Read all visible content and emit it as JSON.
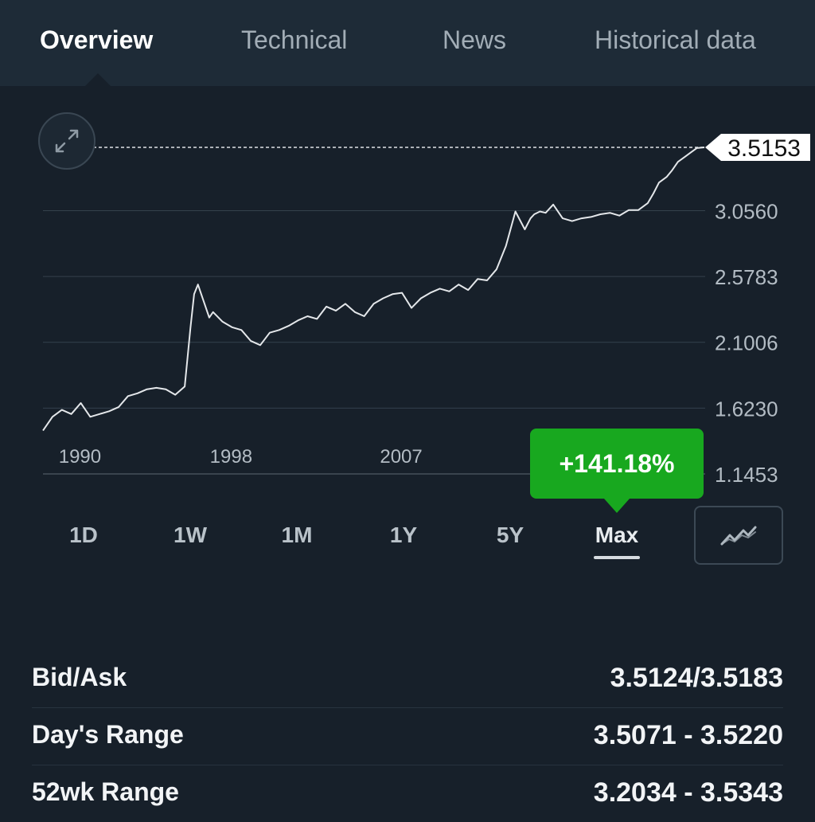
{
  "tabs": [
    {
      "label": "Overview",
      "active": true
    },
    {
      "label": "Technical",
      "active": false
    },
    {
      "label": "News",
      "active": false
    },
    {
      "label": "Historical data",
      "active": false
    }
  ],
  "chart": {
    "expand_icon": "expand-arrows-icon",
    "current_price_label": "3.5153",
    "change_label": "+141.18%",
    "change_color": "#18a81f",
    "line_color": "#e4e7ea"
  },
  "chart_data": {
    "type": "line",
    "title": "",
    "xlabel": "",
    "ylabel": "",
    "x_tick_labels": [
      "1990",
      "1998",
      "2007"
    ],
    "y_tick_labels": [
      "3.0560",
      "2.5783",
      "2.1006",
      "1.6230",
      "1.1453"
    ],
    "ylim": [
      1.1453,
      3.5153
    ],
    "current_value": 3.5153,
    "grid": true,
    "series": [
      {
        "x": [
          1989.0,
          1989.5,
          1990.0,
          1990.5,
          1991.0,
          1991.5,
          1992.0,
          1992.5,
          1993.0,
          1993.5,
          1994.0,
          1994.5,
          1995.0,
          1995.5,
          1996.0,
          1996.5,
          1996.8,
          1997.0,
          1997.2,
          1997.5,
          1997.8,
          1998.0,
          1998.5,
          1999.0,
          1999.5,
          2000.0,
          2000.5,
          2001.0,
          2001.5,
          2002.0,
          2002.5,
          2003.0,
          2003.5,
          2004.0,
          2004.5,
          2005.0,
          2005.5,
          2006.0,
          2006.5,
          2007.0,
          2007.5,
          2008.0,
          2008.5,
          2009.0,
          2009.5,
          2010.0,
          2010.5,
          2011.0,
          2011.5,
          2012.0,
          2012.5,
          2013.0,
          2013.5,
          2014.0,
          2014.5,
          2014.8,
          2015.0,
          2015.3,
          2015.6,
          2016.0,
          2016.5,
          2017.0,
          2017.5,
          2018.0,
          2018.5,
          2019.0,
          2019.5,
          2020.0,
          2020.5,
          2021.0,
          2021.3,
          2021.6,
          2022.0,
          2022.3,
          2022.6,
          2023.0,
          2023.3,
          2023.6,
          2024.0
        ],
        "y": [
          1.46,
          1.56,
          1.61,
          1.58,
          1.66,
          1.56,
          1.58,
          1.6,
          1.63,
          1.71,
          1.73,
          1.76,
          1.77,
          1.76,
          1.72,
          1.78,
          2.2,
          2.45,
          2.52,
          2.4,
          2.28,
          2.32,
          2.25,
          2.21,
          2.19,
          2.11,
          2.08,
          2.17,
          2.19,
          2.22,
          2.26,
          2.29,
          2.27,
          2.36,
          2.33,
          2.38,
          2.32,
          2.29,
          2.38,
          2.42,
          2.45,
          2.46,
          2.35,
          2.42,
          2.46,
          2.49,
          2.47,
          2.52,
          2.48,
          2.56,
          2.55,
          2.63,
          2.8,
          3.05,
          2.92,
          3.0,
          3.03,
          3.05,
          3.04,
          3.1,
          3.0,
          2.98,
          3.0,
          3.01,
          3.03,
          3.04,
          3.02,
          3.06,
          3.06,
          3.11,
          3.18,
          3.26,
          3.3,
          3.35,
          3.41,
          3.45,
          3.48,
          3.51,
          3.5153
        ]
      }
    ]
  },
  "ranges": [
    {
      "label": "1D",
      "active": false
    },
    {
      "label": "1W",
      "active": false
    },
    {
      "label": "1M",
      "active": false
    },
    {
      "label": "1Y",
      "active": false
    },
    {
      "label": "5Y",
      "active": false
    },
    {
      "label": "Max",
      "active": true
    }
  ],
  "chart_type_icon": "line-chart-icon",
  "stats": [
    {
      "label": "Bid/Ask",
      "value": "3.5124/3.5183"
    },
    {
      "label": "Day's Range",
      "value": "3.5071 - 3.5220"
    },
    {
      "label": "52wk Range",
      "value": "3.2034 - 3.5343"
    }
  ]
}
